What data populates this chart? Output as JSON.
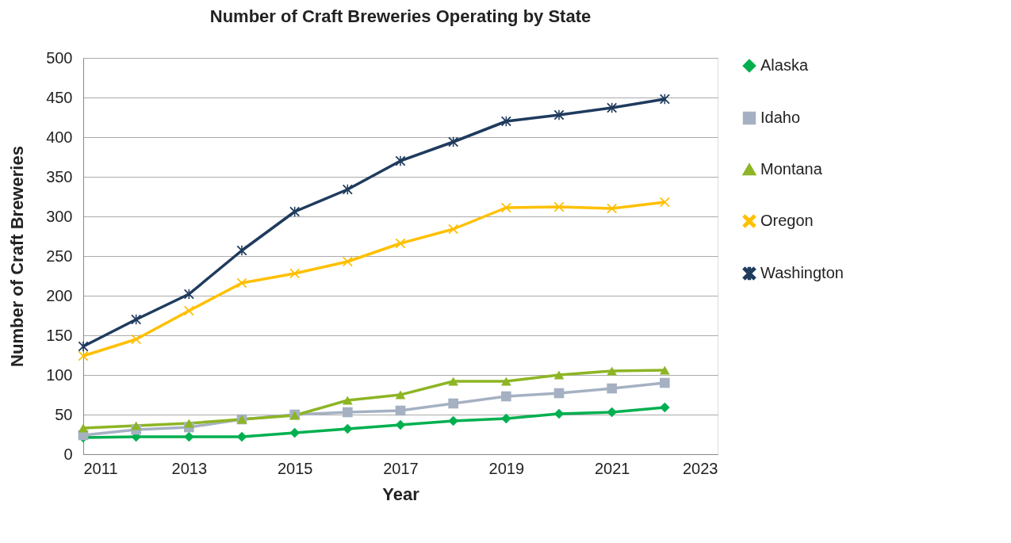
{
  "chart_data": {
    "type": "line",
    "title": "Number of Craft Breweries Operating by State",
    "xlabel": "Year",
    "ylabel": "Number of Craft Breweries",
    "x": [
      2011,
      2012,
      2013,
      2014,
      2015,
      2016,
      2017,
      2018,
      2019,
      2020,
      2021,
      2022
    ],
    "series": [
      {
        "name": "Alaska",
        "color": "#00b050",
        "marker": "diamond",
        "values": [
          21,
          22,
          22,
          22,
          27,
          32,
          37,
          42,
          45,
          51,
          53,
          59
        ]
      },
      {
        "name": "Idaho",
        "color": "#a5b1c2",
        "marker": "square",
        "values": [
          24,
          31,
          34,
          44,
          50,
          53,
          55,
          64,
          73,
          77,
          83,
          90
        ]
      },
      {
        "name": "Montana",
        "color": "#8db524",
        "marker": "triangle",
        "values": [
          33,
          36,
          39,
          44,
          49,
          68,
          75,
          92,
          92,
          100,
          105,
          106
        ]
      },
      {
        "name": "Oregon",
        "color": "#ffc000",
        "marker": "cross",
        "values": [
          124,
          145,
          181,
          216,
          228,
          243,
          266,
          284,
          311,
          312,
          310,
          318
        ]
      },
      {
        "name": "Washington",
        "color": "#1f3b5e",
        "marker": "star",
        "values": [
          136,
          170,
          202,
          257,
          306,
          334,
          370,
          394,
          420,
          428,
          437,
          448
        ]
      }
    ],
    "xlim": [
      2011,
      2023
    ],
    "xticks": [
      2011,
      2013,
      2015,
      2017,
      2019,
      2021,
      2023
    ],
    "ylim": [
      0,
      500
    ],
    "yticks": [
      0,
      50,
      100,
      150,
      200,
      250,
      300,
      350,
      400,
      450,
      500
    ],
    "grid": "y",
    "legend": "right",
    "line_style": "solid"
  }
}
